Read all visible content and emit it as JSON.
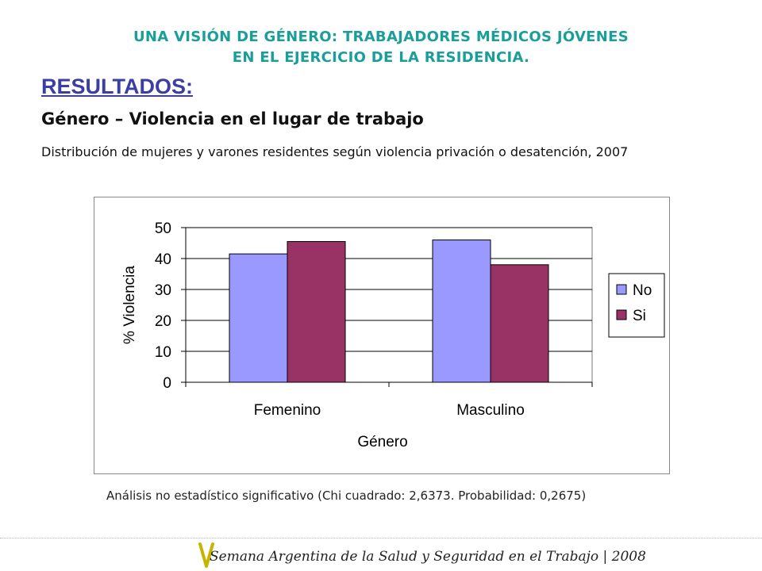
{
  "header": {
    "line1": "UNA VISIÓN DE GÉNERO: TRABAJADORES MÉDICOS JÓVENES",
    "line2": "EN EL EJERCICIO DE LA RESIDENCIA."
  },
  "section_title": "RESULTADOS:",
  "subtitle": "Género – Violencia en el lugar de trabajo",
  "description": "Distribución de mujeres y varones residentes según violencia privación o desatención, 2007",
  "chart_data": {
    "type": "bar",
    "categories": [
      "Femenino",
      "Masculino"
    ],
    "series": [
      {
        "name": "No",
        "values": [
          41.5,
          46
        ],
        "color": "#9999ff"
      },
      {
        "name": "Si",
        "values": [
          45.5,
          38
        ],
        "color": "#993366"
      }
    ],
    "xlabel": "Género",
    "ylabel": "% Violencia",
    "ylim": [
      0,
      50
    ],
    "yticks": [
      "0",
      "10",
      "20",
      "30",
      "40",
      "50"
    ],
    "grid": true,
    "legend": "right"
  },
  "note": {
    "text": "Análisis no estadístico significativo (Chi cuadrado: 2,6373. Probabilidad: 0,2675)",
    "tail": " "
  },
  "footer": {
    "text": "Semana Argentina de la Salud y Seguridad en el Trabajo | 2008",
    "logo_color": "#c8b400"
  }
}
